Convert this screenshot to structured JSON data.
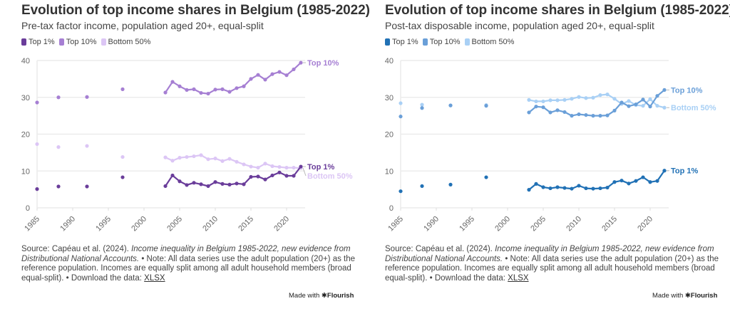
{
  "footer": {
    "source_prefix": "Source: Capéau et al. (2024). ",
    "source_title": "Income inequality in Belgium 1985-2022, new evidence from Distributional National Accounts.",
    "note": " • Note: All data series use the adult population (20+) as the reference population. Incomes are equally split among all adult household members (broad equal-split). • Download the data: ",
    "download_link": "XLSX",
    "made_with": "Made with",
    "brand": "✱Flourish"
  },
  "chart_data": [
    {
      "type": "line",
      "title": "Evolution of top income shares in Belgium (1985-2022)",
      "subtitle": "Pre-tax factor income, population aged 20+, equal-split",
      "xlabel": "",
      "ylabel": "",
      "xlim": [
        1985,
        2022
      ],
      "ylim": [
        0,
        40
      ],
      "yticks": [
        0,
        10,
        20,
        30,
        40
      ],
      "xticks": [
        1985,
        1990,
        1995,
        2000,
        2005,
        2010,
        2015,
        2020
      ],
      "grid": true,
      "legend": "top-left",
      "x": [
        1985,
        1988,
        1992,
        1997,
        2003,
        2004,
        2005,
        2006,
        2007,
        2008,
        2009,
        2010,
        2011,
        2012,
        2013,
        2014,
        2015,
        2016,
        2017,
        2018,
        2019,
        2020,
        2021,
        2022
      ],
      "series": [
        {
          "name": "Top 1%",
          "color": "#6a3d9a",
          "end_label": "Top 1%",
          "values": [
            5.1,
            5.8,
            5.8,
            8.3,
            5.9,
            8.8,
            7.2,
            6.2,
            6.8,
            6.4,
            5.9,
            7.0,
            6.5,
            6.3,
            6.6,
            6.4,
            8.4,
            8.5,
            7.7,
            8.8,
            9.6,
            8.7,
            8.7,
            11.2
          ]
        },
        {
          "name": "Top 10%",
          "color": "#a67fd3",
          "end_label": "Top 10%",
          "values": [
            28.6,
            30.0,
            30.1,
            32.2,
            31.3,
            34.2,
            33.0,
            32.0,
            32.2,
            31.2,
            31.0,
            32.1,
            32.2,
            31.5,
            32.5,
            33.0,
            35.0,
            36.1,
            34.8,
            36.3,
            36.9,
            36.0,
            37.6,
            39.4
          ]
        },
        {
          "name": "Bottom 50%",
          "color": "#dcc6f5",
          "end_label": "Bottom 50%",
          "values": [
            17.3,
            16.5,
            16.8,
            13.8,
            13.7,
            12.8,
            13.6,
            13.8,
            14.0,
            14.3,
            13.2,
            13.4,
            12.7,
            13.3,
            12.5,
            11.8,
            11.2,
            10.9,
            12.0,
            11.3,
            11.1,
            10.9,
            10.9,
            10.8
          ]
        }
      ]
    },
    {
      "type": "line",
      "title": "Evolution of top income shares in Belgium (1985-2022)",
      "subtitle": "Post-tax disposable income, population aged 20+, equal-split",
      "xlabel": "",
      "ylabel": "",
      "xlim": [
        1985,
        2022
      ],
      "ylim": [
        0,
        40
      ],
      "yticks": [
        0,
        10,
        20,
        30,
        40
      ],
      "xticks": [
        1985,
        1990,
        1995,
        2000,
        2005,
        2010,
        2015,
        2020
      ],
      "grid": true,
      "legend": "top-left",
      "x": [
        1985,
        1988,
        1992,
        1997,
        2003,
        2004,
        2005,
        2006,
        2007,
        2008,
        2009,
        2010,
        2011,
        2012,
        2013,
        2014,
        2015,
        2016,
        2017,
        2018,
        2019,
        2020,
        2021,
        2022
      ],
      "series": [
        {
          "name": "Top 1%",
          "color": "#2171b5",
          "end_label": "Top 1%",
          "values": [
            4.5,
            5.9,
            6.3,
            8.3,
            4.9,
            6.5,
            5.6,
            5.3,
            5.6,
            5.4,
            5.2,
            6.0,
            5.3,
            5.2,
            5.3,
            5.5,
            7.0,
            7.4,
            6.6,
            7.3,
            8.3,
            7.0,
            7.3,
            10.1
          ]
        },
        {
          "name": "Top 10%",
          "color": "#6a9fd8",
          "end_label": "Top 10%",
          "values": [
            24.8,
            27.1,
            27.8,
            27.7,
            25.9,
            27.5,
            27.3,
            25.9,
            26.5,
            26.0,
            25.0,
            25.4,
            25.2,
            25.0,
            25.0,
            25.1,
            26.4,
            28.6,
            27.6,
            28.1,
            29.4,
            27.5,
            30.4,
            32.0
          ]
        },
        {
          "name": "Bottom 50%",
          "color": "#a9d0f5",
          "end_label": "Bottom 50%",
          "values": [
            28.4,
            28.0,
            27.8,
            27.9,
            29.3,
            28.9,
            28.9,
            29.2,
            29.2,
            29.3,
            29.6,
            30.1,
            29.8,
            29.9,
            30.6,
            30.8,
            29.6,
            28.2,
            29.0,
            27.9,
            27.7,
            29.5,
            27.7,
            27.2
          ]
        }
      ]
    }
  ]
}
